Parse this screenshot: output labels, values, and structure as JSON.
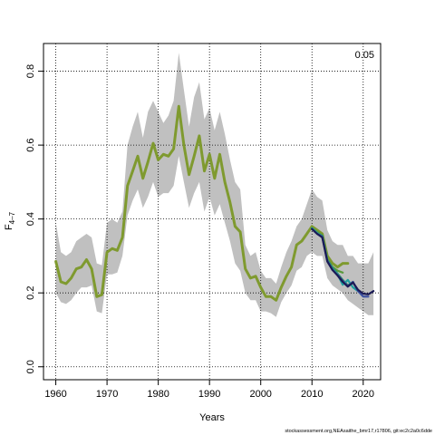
{
  "chart_data": {
    "type": "line",
    "xlabel": "Years",
    "ylabel": {
      "main": "F",
      "sub": "4–7"
    },
    "xlim": [
      1957.6,
      2023.4
    ],
    "ylim": [
      -0.035,
      0.875
    ],
    "xticks": [
      1960,
      1970,
      1980,
      1990,
      2000,
      2010,
      2020
    ],
    "yticks": [
      0.0,
      0.2,
      0.4,
      0.6,
      0.8
    ],
    "ytick_labels": [
      "0.0",
      "0.2",
      "0.4",
      "0.6",
      "0.8"
    ],
    "grid": true,
    "corner_label": "0.05",
    "footer": "stockassessment.org,NEAsaithe_bmr17,r17806, git:ec2c2a0c6dde",
    "band": {
      "x": [
        1960,
        1961,
        1962,
        1963,
        1964,
        1965,
        1966,
        1967,
        1968,
        1969,
        1970,
        1971,
        1972,
        1973,
        1974,
        1975,
        1976,
        1977,
        1978,
        1979,
        1980,
        1981,
        1982,
        1983,
        1984,
        1985,
        1986,
        1987,
        1988,
        1989,
        1990,
        1991,
        1992,
        1993,
        1994,
        1995,
        1996,
        1997,
        1998,
        1999,
        2000,
        2001,
        2002,
        2003,
        2004,
        2005,
        2006,
        2007,
        2008,
        2009,
        2010,
        2011,
        2012,
        2013,
        2014,
        2015,
        2016,
        2017,
        2018,
        2019,
        2020,
        2021,
        2022
      ],
      "lower": [
        0.2,
        0.175,
        0.17,
        0.18,
        0.2,
        0.215,
        0.215,
        0.22,
        0.15,
        0.145,
        0.25,
        0.25,
        0.255,
        0.3,
        0.41,
        0.45,
        0.48,
        0.43,
        0.46,
        0.5,
        0.46,
        0.47,
        0.47,
        0.49,
        0.57,
        0.5,
        0.43,
        0.47,
        0.5,
        0.42,
        0.46,
        0.41,
        0.44,
        0.39,
        0.34,
        0.28,
        0.26,
        0.2,
        0.18,
        0.18,
        0.15,
        0.15,
        0.145,
        0.135,
        0.175,
        0.2,
        0.22,
        0.26,
        0.27,
        0.3,
        0.31,
        0.3,
        0.3,
        0.24,
        0.22,
        0.21,
        0.2,
        0.18,
        0.17,
        0.16,
        0.15,
        0.14,
        0.14
      ],
      "upper": [
        0.39,
        0.31,
        0.3,
        0.31,
        0.34,
        0.35,
        0.36,
        0.35,
        0.28,
        0.275,
        0.39,
        0.4,
        0.39,
        0.42,
        0.6,
        0.65,
        0.69,
        0.62,
        0.69,
        0.72,
        0.69,
        0.66,
        0.68,
        0.72,
        0.85,
        0.75,
        0.65,
        0.73,
        0.77,
        0.67,
        0.7,
        0.64,
        0.69,
        0.63,
        0.56,
        0.5,
        0.48,
        0.33,
        0.3,
        0.31,
        0.26,
        0.24,
        0.24,
        0.225,
        0.27,
        0.31,
        0.34,
        0.38,
        0.4,
        0.44,
        0.48,
        0.46,
        0.45,
        0.37,
        0.34,
        0.33,
        0.33,
        0.3,
        0.3,
        0.28,
        0.28,
        0.28,
        0.31
      ]
    },
    "series": [
      {
        "color": "#7f9a2f",
        "x": [
          1960,
          1961,
          1962,
          1963,
          1964,
          1965,
          1966,
          1967,
          1968,
          1969,
          1970,
          1971,
          1972,
          1973,
          1974,
          1975,
          1976,
          1977,
          1978,
          1979,
          1980,
          1981,
          1982,
          1983,
          1984,
          1985,
          1986,
          1987,
          1988,
          1989,
          1990,
          1991,
          1992,
          1993,
          1994,
          1995,
          1996,
          1997,
          1998,
          1999,
          2000,
          2001,
          2002,
          2003,
          2004,
          2005,
          2006,
          2007,
          2008,
          2009,
          2010,
          2011,
          2012,
          2013,
          2014,
          2015,
          2016,
          2017
        ],
        "y": [
          0.285,
          0.23,
          0.225,
          0.24,
          0.265,
          0.27,
          0.29,
          0.265,
          0.19,
          0.195,
          0.31,
          0.32,
          0.315,
          0.35,
          0.49,
          0.53,
          0.57,
          0.51,
          0.555,
          0.605,
          0.56,
          0.575,
          0.57,
          0.59,
          0.705,
          0.6,
          0.52,
          0.57,
          0.625,
          0.53,
          0.575,
          0.51,
          0.575,
          0.5,
          0.445,
          0.38,
          0.365,
          0.265,
          0.24,
          0.245,
          0.215,
          0.19,
          0.19,
          0.18,
          0.215,
          0.245,
          0.27,
          0.33,
          0.34,
          0.36,
          0.38,
          0.37,
          0.36,
          0.3,
          0.28,
          0.27,
          0.28,
          0.28
        ]
      },
      {
        "color": "#5a9a3c",
        "x": [
          2010,
          2011,
          2012,
          2013,
          2014,
          2015,
          2016
        ],
        "y": [
          0.375,
          0.365,
          0.355,
          0.29,
          0.27,
          0.26,
          0.255
        ]
      },
      {
        "color": "#2a8a6a",
        "x": [
          2010,
          2011,
          2012,
          2013,
          2014,
          2015,
          2016,
          2017,
          2018
        ],
        "y": [
          0.375,
          0.36,
          0.355,
          0.29,
          0.268,
          0.252,
          0.235,
          0.22,
          0.23
        ]
      },
      {
        "color": "#20a0a0",
        "x": [
          2010,
          2011,
          2012,
          2013,
          2014,
          2015,
          2016,
          2017,
          2018,
          2019
        ],
        "y": [
          0.375,
          0.362,
          0.352,
          0.287,
          0.265,
          0.25,
          0.222,
          0.235,
          0.215,
          0.205
        ]
      },
      {
        "color": "#3a4fa0",
        "x": [
          2010,
          2011,
          2012,
          2013,
          2014,
          2015,
          2016,
          2017,
          2018,
          2019,
          2020,
          2021
        ],
        "y": [
          0.373,
          0.36,
          0.352,
          0.286,
          0.262,
          0.248,
          0.232,
          0.218,
          0.23,
          0.205,
          0.19,
          0.19
        ]
      },
      {
        "color": "#1a1a55",
        "x": [
          2010,
          2011,
          2012,
          2013,
          2014,
          2015,
          2016,
          2017,
          2018,
          2019,
          2020,
          2021,
          2022
        ],
        "y": [
          0.373,
          0.36,
          0.35,
          0.285,
          0.262,
          0.247,
          0.23,
          0.217,
          0.228,
          0.208,
          0.198,
          0.196,
          0.205
        ]
      }
    ]
  }
}
